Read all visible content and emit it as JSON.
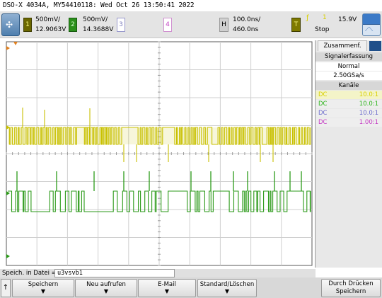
{
  "title_bar": {
    "text": "DSO-X 4034A, MY54410118: Wed Oct 26 13:50:41 2022"
  },
  "channels": [
    {
      "number": "1",
      "scale": "500mV/",
      "offset": "12.9063V",
      "color": "#c8c000"
    },
    {
      "number": "2",
      "scale": "500mV/",
      "offset": "14.3688V",
      "color": "#2b9a18"
    },
    {
      "number": "3",
      "color": "#7c7cbc"
    },
    {
      "number": "4",
      "color": "#c040c0"
    }
  ],
  "horizontal": {
    "label": "H",
    "timebase": "100.0ns/",
    "position": "460.0ns"
  },
  "trigger": {
    "label": "T",
    "level": "15.9V",
    "status": "Stop"
  },
  "panel": {
    "tab": "Zusammenf.",
    "acquisition_header": "Signalerfassung",
    "mode": "Normal",
    "sample_rate": "2.50GSa/s",
    "channels_header": "Kanäle",
    "channel_rows": [
      {
        "coupling": "DC",
        "probe": "10.0:1",
        "color": "#d8d000"
      },
      {
        "coupling": "DC",
        "probe": "10.0:1",
        "color": "#2ab318"
      },
      {
        "coupling": "DC",
        "probe": "10.0:1",
        "color": "#6a6acc"
      },
      {
        "coupling": "DC",
        "probe": "1.00:1",
        "color": "#c43ac4"
      }
    ]
  },
  "file_bar": {
    "label": "Speich. in Datei =",
    "value": "u3vsvb1"
  },
  "softkeys": {
    "back": "↑",
    "save": "Speichern",
    "new_reload": "Neu aufrufen",
    "email": "E-Mail",
    "default_clear": "Standard/Löschen",
    "print_save_line1": "Durch Drücken",
    "print_save_line2": "Speichern"
  }
}
